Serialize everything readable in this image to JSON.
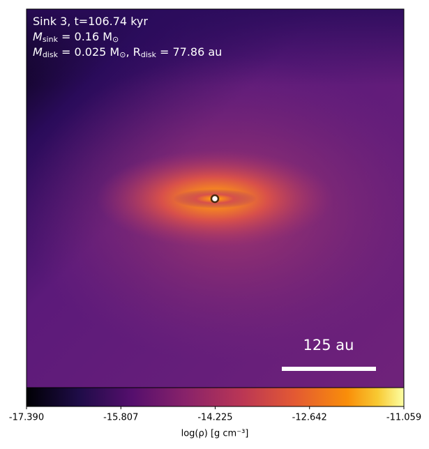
{
  "chart_data": {
    "type": "image",
    "annotations": [
      [
        {
          "text": "Sink 3, t=106.74 kyr"
        }
      ],
      [
        {
          "text": "M"
        },
        {
          "sub": "sink"
        },
        {
          "text": " = 0.16 M"
        },
        {
          "sub": "⊙"
        }
      ],
      [
        {
          "text": "M"
        },
        {
          "sub": "disk"
        },
        {
          "text": " = 0.025 M"
        },
        {
          "sub": "⊙"
        },
        {
          "text": ", R"
        },
        {
          "sub": "disk"
        },
        {
          "text": " = 77.86 au"
        }
      ]
    ],
    "scale_bar": "125 au",
    "colorbar": {
      "label": "log(ρ) [g cm⁻³]",
      "lim": [
        -17.39,
        -11.059
      ],
      "ticks": [
        {
          "value": -17.39,
          "label": "-17.390"
        },
        {
          "value": -15.807,
          "label": "-15.807"
        },
        {
          "value": -14.225,
          "label": "-14.225"
        },
        {
          "value": -12.642,
          "label": "-12.642"
        },
        {
          "value": -11.059,
          "label": "-11.059"
        }
      ],
      "colormap": "inferno"
    }
  }
}
